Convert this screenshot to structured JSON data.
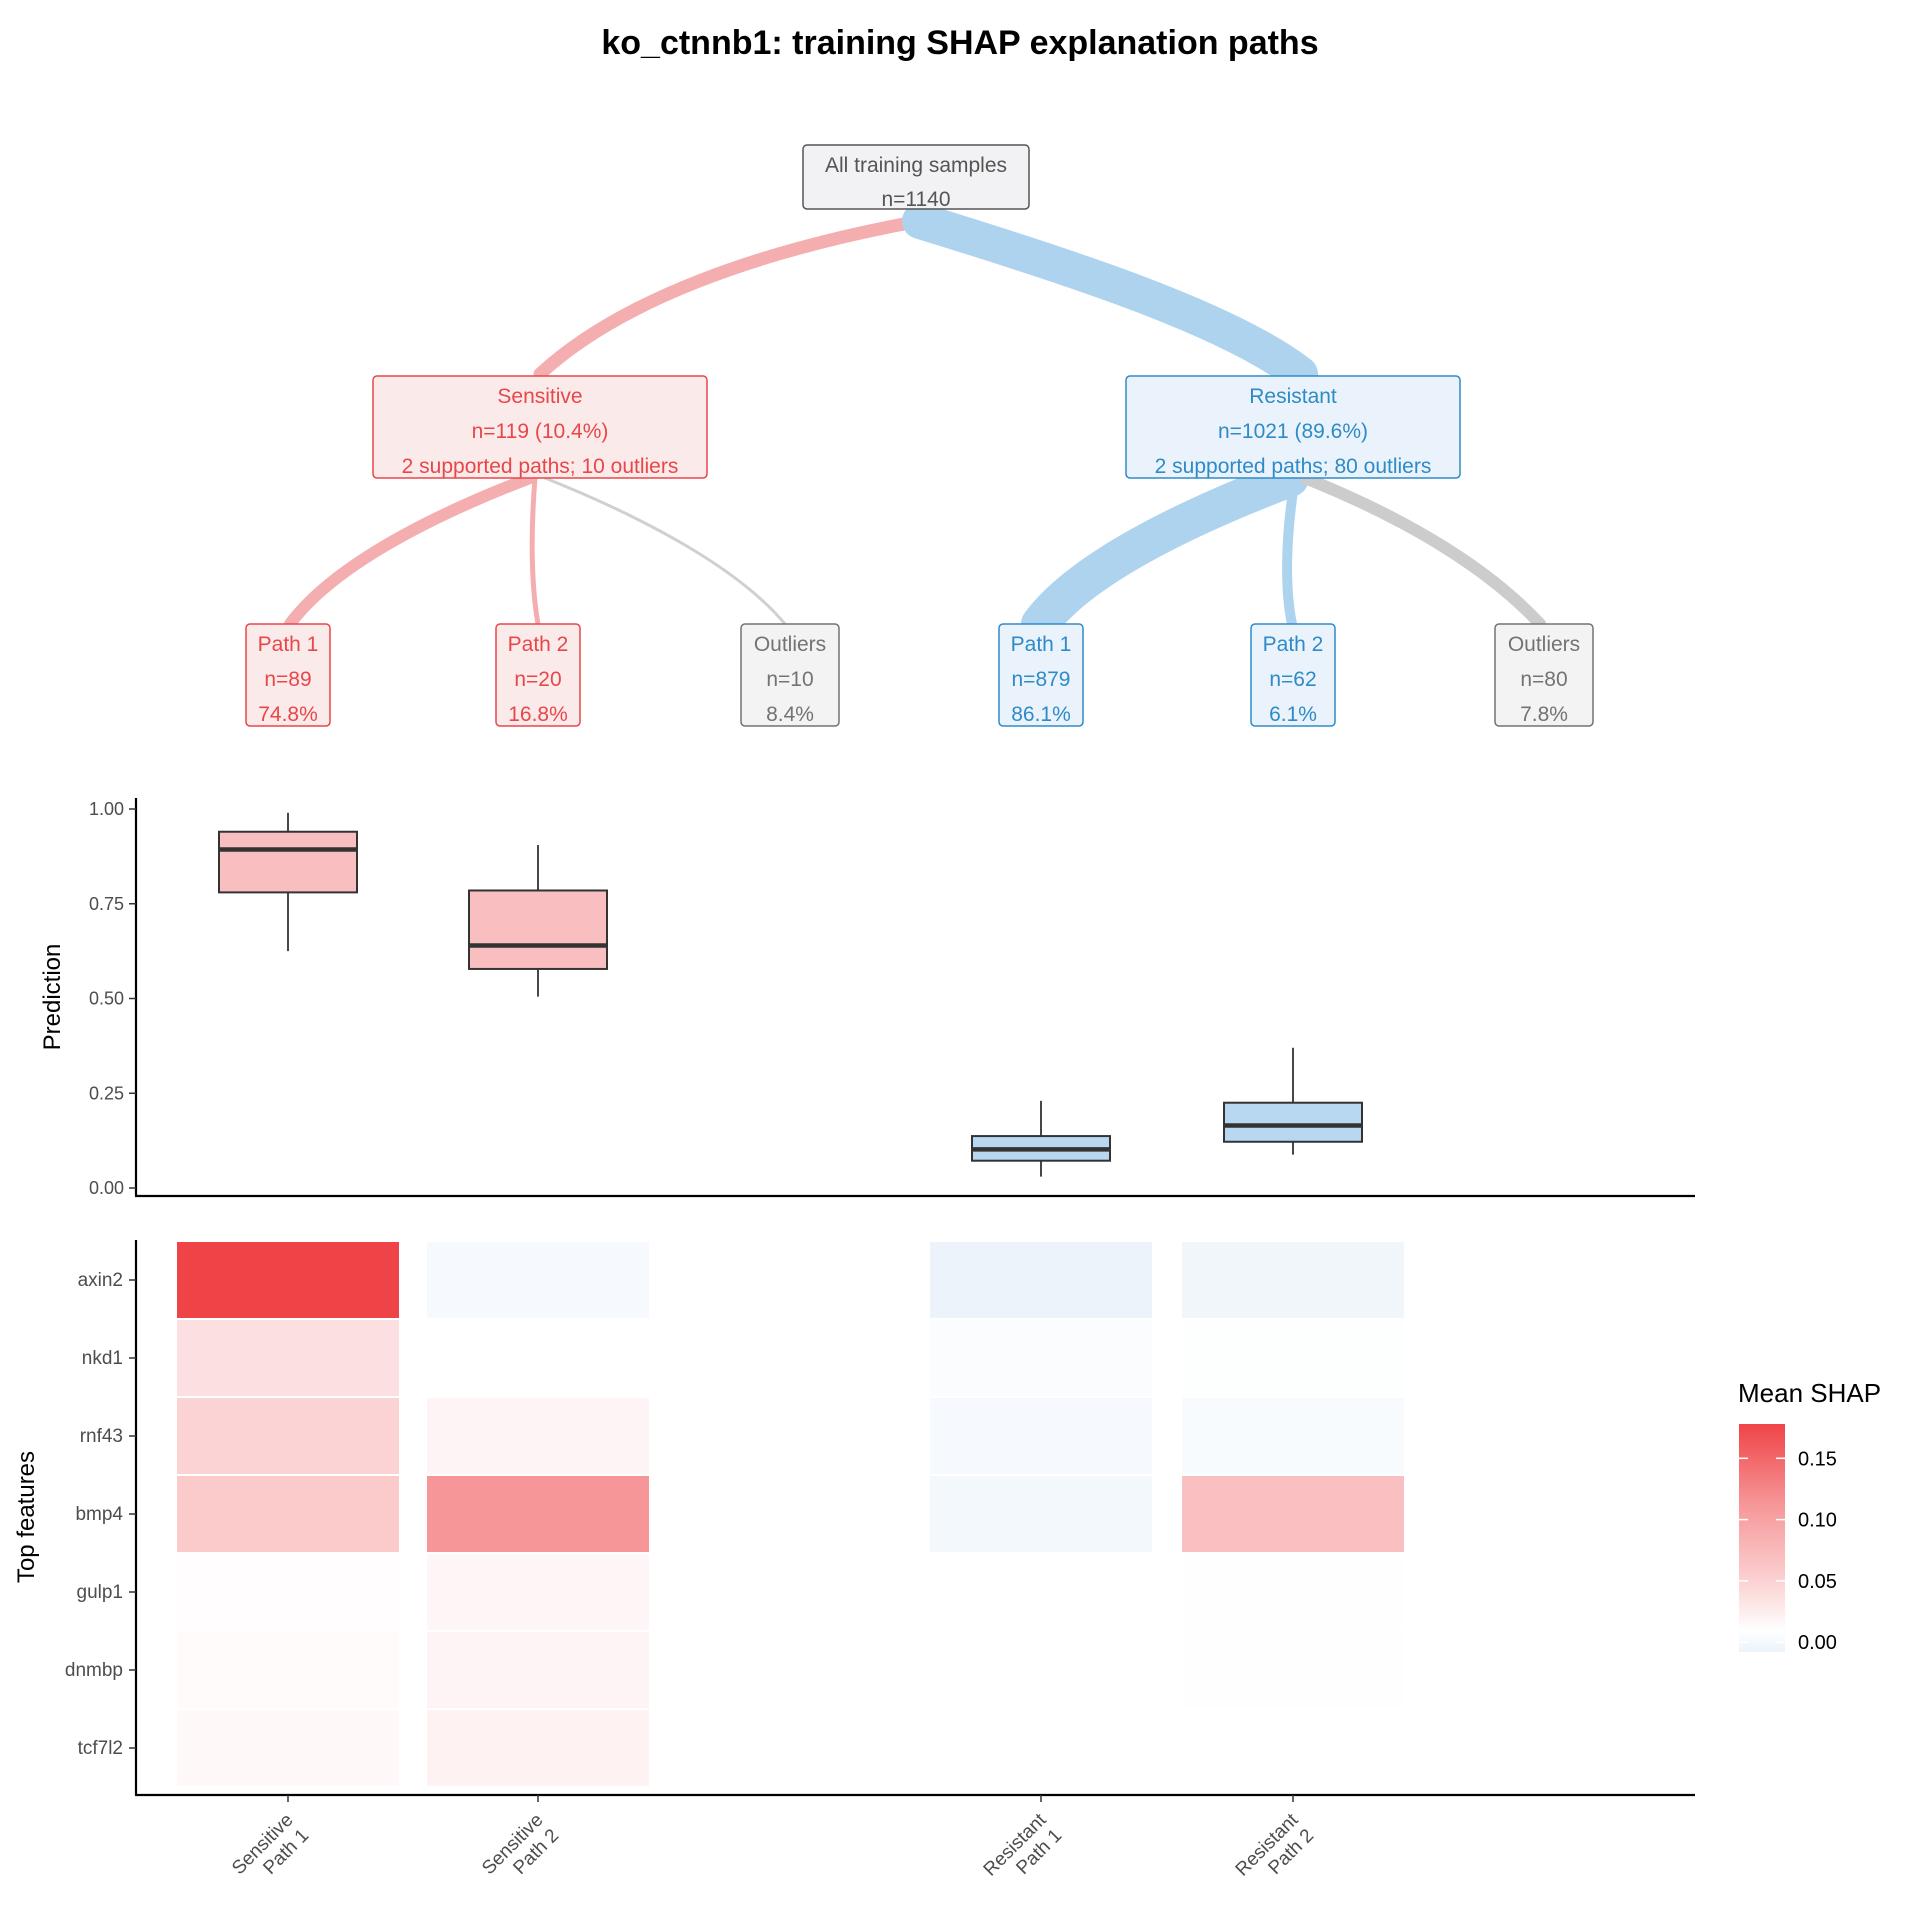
{
  "title": "ko_ctnnb1: training SHAP explanation paths",
  "colors": {
    "sensitive": "#e8474a",
    "sensitive_fill": "#fbeaea",
    "sensitive_edge": "#f4aeb0",
    "resistant": "#2e8bc8",
    "resistant_fill": "#eaf3fb",
    "resistant_edge": "#aed3ee",
    "outlier": "#737373",
    "outlier_fill": "#f3f3f3",
    "outlier_edge": "#cccccc",
    "root": "#555555",
    "root_fill": "#f2f2f4",
    "box_sensitive": "#f9bfc0",
    "box_resistant": "#b7d8f0"
  },
  "tree": {
    "root": {
      "lines": [
        "All training samples",
        "n=1140"
      ]
    },
    "groups": [
      {
        "id": "sensitive",
        "lines": [
          "Sensitive",
          "n=119 (10.4%)",
          "2 supported paths; 10 outliers"
        ]
      },
      {
        "id": "resistant",
        "lines": [
          "Resistant",
          "n=1021 (89.6%)",
          "2 supported paths; 80 outliers"
        ]
      }
    ],
    "leaves": [
      {
        "group": "sensitive",
        "kind": "path",
        "lines": [
          "Path 1",
          "n=89",
          "74.8%"
        ]
      },
      {
        "group": "sensitive",
        "kind": "path",
        "lines": [
          "Path 2",
          "n=20",
          "16.8%"
        ]
      },
      {
        "group": "sensitive",
        "kind": "outlier",
        "lines": [
          "Outliers",
          "n=10",
          "8.4%"
        ]
      },
      {
        "group": "resistant",
        "kind": "path",
        "lines": [
          "Path 1",
          "n=879",
          "86.1%"
        ]
      },
      {
        "group": "resistant",
        "kind": "path",
        "lines": [
          "Path 2",
          "n=62",
          "6.1%"
        ]
      },
      {
        "group": "resistant",
        "kind": "outlier",
        "lines": [
          "Outliers",
          "n=80",
          "7.8%"
        ]
      }
    ]
  },
  "chart_data": [
    {
      "type": "box",
      "ylabel": "Prediction",
      "ylim": [
        0,
        1
      ],
      "yticks": [
        "0.00",
        "0.25",
        "0.50",
        "0.75",
        "1.00"
      ],
      "groups": [
        {
          "name": "Sensitive Path 1",
          "group": "sensitive",
          "whisker_low": 0.625,
          "q1": 0.78,
          "median": 0.893,
          "q3": 0.94,
          "whisker_high": 0.99
        },
        {
          "name": "Sensitive Path 2",
          "group": "sensitive",
          "whisker_low": 0.505,
          "q1": 0.578,
          "median": 0.64,
          "q3": 0.785,
          "whisker_high": 0.905
        },
        {
          "name": "Resistant Path 1",
          "group": "resistant",
          "whisker_low": 0.03,
          "q1": 0.072,
          "median": 0.102,
          "q3": 0.137,
          "whisker_high": 0.23
        },
        {
          "name": "Resistant Path 2",
          "group": "resistant",
          "whisker_low": 0.088,
          "q1": 0.122,
          "median": 0.165,
          "q3": 0.225,
          "whisker_high": 0.37
        }
      ]
    },
    {
      "type": "heatmap",
      "ylabel": "Top features",
      "rows": [
        "axin2",
        "nkd1",
        "rnf43",
        "bmp4",
        "gulp1",
        "dnmbp",
        "tcf7l2"
      ],
      "columns": [
        [
          "Sensitive",
          "Path 1"
        ],
        [
          "Sensitive",
          "Path 2"
        ],
        [
          "Resistant",
          "Path 1"
        ],
        [
          "Resistant",
          "Path 2"
        ]
      ],
      "values": [
        [
          0.178,
          -0.004,
          -0.008,
          -0.006
        ],
        [
          0.03,
          0.0,
          -0.002,
          -0.001
        ],
        [
          0.042,
          0.01,
          -0.004,
          -0.003
        ],
        [
          0.05,
          0.1,
          -0.005,
          0.06
        ],
        [
          0.002,
          0.009,
          0.0,
          0.001
        ],
        [
          0.004,
          0.01,
          0.0,
          0.001
        ],
        [
          0.007,
          0.012,
          0.0,
          0.0
        ]
      ],
      "legend": {
        "title": "Mean SHAP",
        "ticks": [
          "0.00",
          "0.05",
          "0.10",
          "0.15"
        ]
      }
    }
  ]
}
